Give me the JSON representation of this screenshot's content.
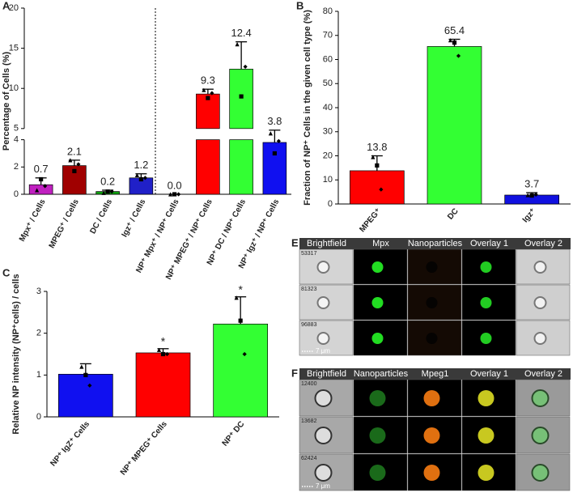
{
  "chart_data": [
    {
      "type": "bar",
      "panel": "A",
      "ylabel": "Percentage of Cells (%)",
      "categories": [
        "Mpx⁺ / Cells",
        "MPEG⁺ / Cells",
        "DC / Cells",
        "Igz⁺ / Cells",
        "NP⁺ Mpx⁺ / NP⁺ Cells",
        "NP⁺ MPEG⁺ / NP⁺ Cells",
        "NP⁺ DC / NP⁺ Cells",
        "NP⁺ Igz⁺ / NP⁺ Cells"
      ],
      "values": [
        0.7,
        2.1,
        0.2,
        1.2,
        0.0,
        9.3,
        12.4,
        3.8
      ],
      "value_labels": [
        "0.7",
        "2.1",
        "0.2",
        "1.2",
        "0.0",
        "9.3",
        "12.4",
        "3.8"
      ],
      "errors": [
        0.5,
        0.4,
        0.1,
        0.3,
        0.0,
        0.6,
        3.4,
        1.0
      ],
      "points": [
        [
          0.3,
          1.1,
          0.6
        ],
        [
          2.5,
          1.7,
          2.2
        ],
        [
          0.1,
          0.2,
          0.2
        ],
        [
          1.4,
          1.1,
          1.2
        ],
        [
          0,
          0,
          0
        ],
        [
          9.8,
          8.8,
          9.4
        ],
        [
          15.5,
          9.0,
          12.7
        ],
        [
          4.4,
          3.0,
          3.9
        ]
      ],
      "colors": [
        "#c020c0",
        "#a00000",
        "#10a010",
        "#2020c8",
        "#202020",
        "#ff0000",
        "#33ff33",
        "#1010f0"
      ],
      "ylim": [
        0,
        20
      ],
      "y_segments": [
        {
          "ylim": [
            0,
            4
          ],
          "yticks": [
            0,
            2,
            4
          ]
        },
        {
          "ylim": [
            5,
            20
          ],
          "yticks": [
            5,
            10,
            15,
            20
          ]
        }
      ]
    },
    {
      "type": "bar",
      "panel": "B",
      "ylabel": "Fraction of NP⁺ Cells in the given cell type (%)",
      "categories": [
        "MPEG⁺",
        "DC",
        "Igz⁺"
      ],
      "values": [
        13.8,
        65.4,
        3.7
      ],
      "data_labels": true,
      "errors": [
        6.2,
        3.0,
        1.0
      ],
      "points": [
        [
          19.5,
          16,
          6
        ],
        [
          68,
          67,
          61.5
        ],
        [
          3.7,
          3.5,
          3.9
        ]
      ],
      "colors": [
        "#ff0000",
        "#33ff33",
        "#1010e0"
      ],
      "ylim": [
        0,
        80
      ],
      "yticks": [
        0,
        10,
        20,
        30,
        40,
        50,
        60,
        70,
        80
      ]
    },
    {
      "type": "bar",
      "panel": "C",
      "ylabel": "Relative NP intensity (NP⁺cells) / cells",
      "categories": [
        "NP⁺ IgZ⁺ Cells",
        "NP⁺ MPEG⁺ Cells",
        "NP⁺ DC"
      ],
      "values": [
        1.02,
        1.53,
        2.22
      ],
      "errors": [
        0.25,
        0.1,
        0.65
      ],
      "points": [
        [
          1.2,
          1.0,
          0.75
        ],
        [
          1.6,
          1.5,
          1.5
        ],
        [
          2.85,
          2.3,
          1.5
        ]
      ],
      "annotations": [
        null,
        "*",
        "*"
      ],
      "colors": [
        "#1010f0",
        "#ff0000",
        "#33ff33"
      ],
      "ylim": [
        0,
        3
      ],
      "yticks": [
        0,
        1,
        2,
        3
      ]
    }
  ],
  "image_panels": [
    {
      "panel": "E",
      "headers": [
        "Brightfield",
        "Mpx",
        "Nanoparticles",
        "Overlay 1",
        "Overlay 2"
      ],
      "rows": [
        "53317",
        "81323",
        "96883"
      ],
      "scale": "7 μm"
    },
    {
      "panel": "F",
      "headers": [
        "Brightfield",
        "Nanoparticles",
        "Mpeg1",
        "Overlay 1",
        "Overlay 2"
      ],
      "rows": [
        "12400",
        "13682",
        "62424"
      ],
      "scale": "7 μm"
    }
  ]
}
